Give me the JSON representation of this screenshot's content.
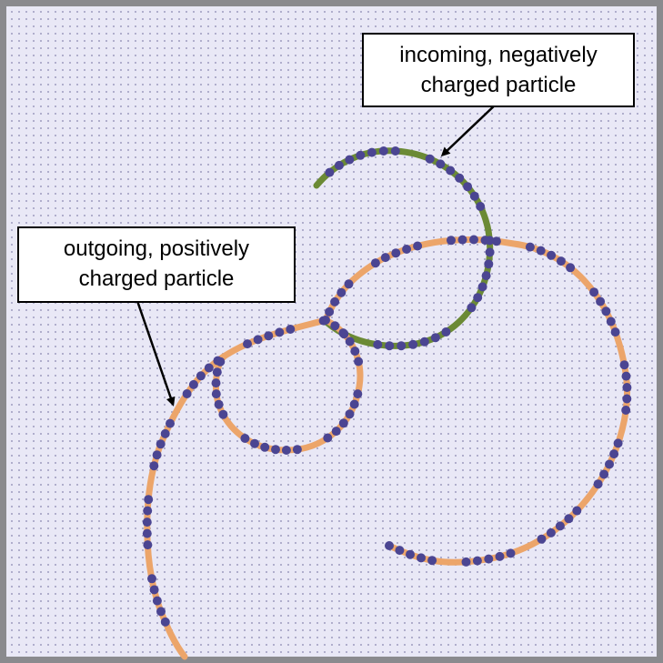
{
  "labels": {
    "incoming": {
      "line1": "incoming, negatively",
      "line2": "charged particle"
    },
    "outgoing": {
      "line1": "outgoing, positively",
      "line2": "charged particle"
    }
  },
  "colors": {
    "background": "#e9e8f6",
    "grid_dot": "#a8a6c6",
    "frame": "#8a8a8e",
    "negative_track": "#6b8a35",
    "positive_track": "#eca56a",
    "detector_hit": "#4b4592",
    "arrow": "#000000"
  }
}
